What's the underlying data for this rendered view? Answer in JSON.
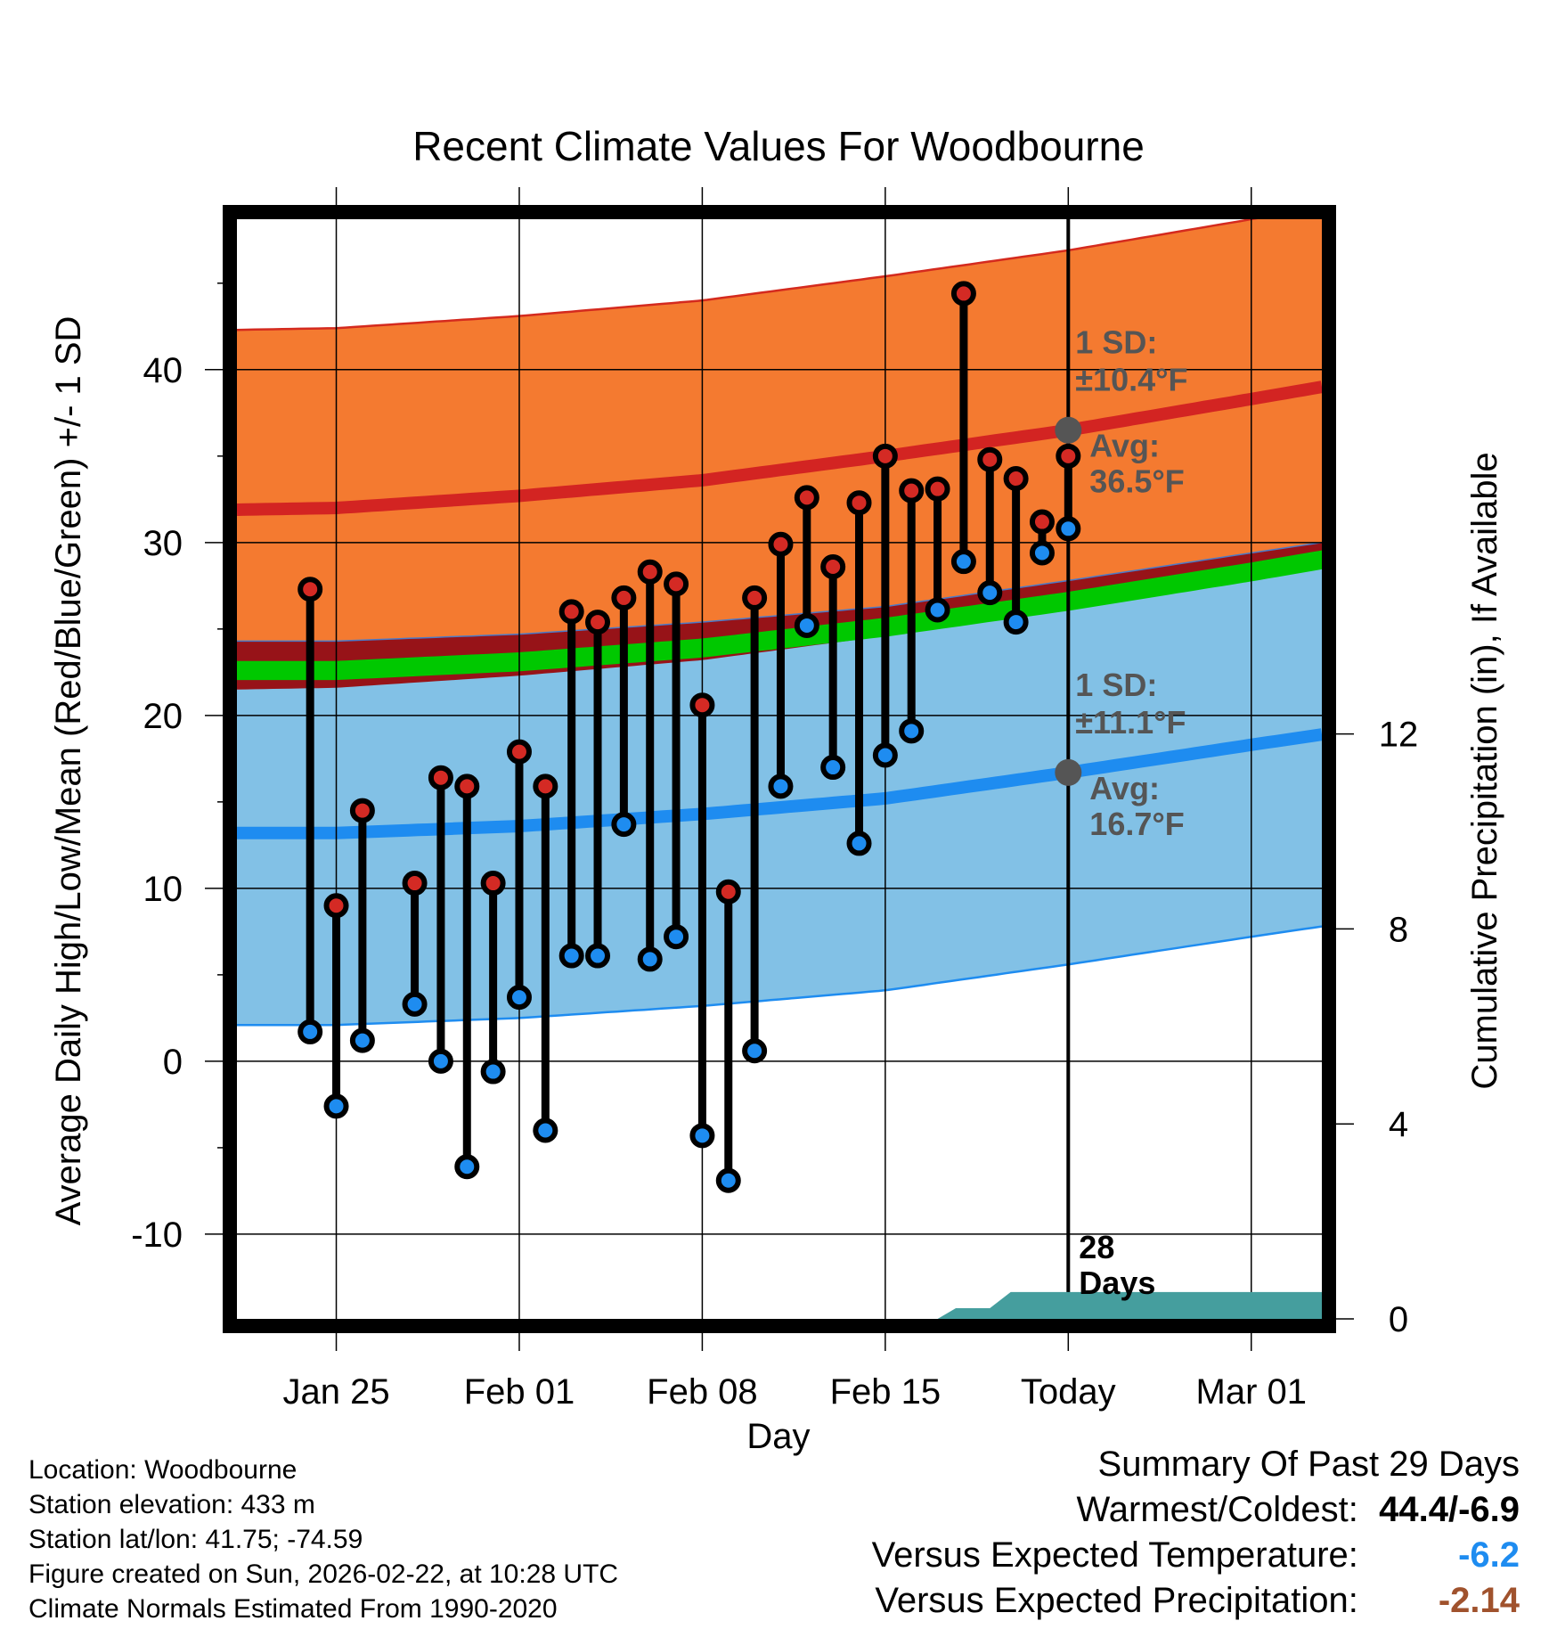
{
  "chart_data": {
    "type": "daily-temperature-range",
    "title": "Recent Climate Values For Woodbourne",
    "xlabel": "Day",
    "ylabel_left": "Average Daily High/Low/Mean (Red/Blue/Green) +/- 1 SD",
    "ylabel_right": "Cumulative Precipitation (in), If Available",
    "x_range_days": [
      -31.8,
      9.7
    ],
    "y_left_range": [
      -14.9,
      48.7
    ],
    "y_right_range": [
      0,
      22.56
    ],
    "y_left_ticks": [
      "-10",
      "0",
      "10",
      "20",
      "30",
      "40"
    ],
    "y_left_tick_values": [
      -10,
      0,
      10,
      20,
      30,
      40
    ],
    "y_right_ticks": [
      "0",
      "4",
      "8",
      "12"
    ],
    "y_right_tick_values": [
      0,
      4,
      8,
      12
    ],
    "x_ticks": [
      {
        "label": "Jan 25",
        "day": -28
      },
      {
        "label": "Feb 01",
        "day": -21
      },
      {
        "label": "Feb 08",
        "day": -14
      },
      {
        "label": "Feb 15",
        "day": -7
      },
      {
        "label": "Today",
        "day": 0
      },
      {
        "label": "Mar 01",
        "day": 7
      }
    ],
    "today_day": 0,
    "normals": {
      "high_avg": [
        [
          -31.8,
          31.9
        ],
        [
          -28,
          32.0
        ],
        [
          -21,
          32.7
        ],
        [
          -14,
          33.6
        ],
        [
          -7,
          35.0
        ],
        [
          0,
          36.5
        ],
        [
          7,
          38.3
        ],
        [
          9.7,
          39.0
        ]
      ],
      "high_sd": 10.4,
      "low_avg": [
        [
          -31.8,
          13.2
        ],
        [
          -28,
          13.2
        ],
        [
          -21,
          13.6
        ],
        [
          -14,
          14.3
        ],
        [
          -7,
          15.2
        ],
        [
          0,
          16.7
        ],
        [
          7,
          18.3
        ],
        [
          9.7,
          18.9
        ]
      ],
      "low_sd": 11.1,
      "mean_avg": [
        [
          -31.8,
          22.6
        ],
        [
          -28,
          22.6
        ],
        [
          -21,
          23.1
        ],
        [
          -14,
          23.9
        ],
        [
          -7,
          25.1
        ],
        [
          0,
          26.6
        ],
        [
          7,
          28.3
        ],
        [
          9.7,
          29.0
        ]
      ],
      "mean_band_halfwidth": 0.55
    },
    "observations": [
      {
        "day": -29,
        "high": 27.3,
        "low": 1.7
      },
      {
        "day": -28,
        "high": 9.0,
        "low": -2.6
      },
      {
        "day": -27,
        "high": 14.5,
        "low": 1.2
      },
      {
        "day": -25,
        "high": 10.3,
        "low": 3.3
      },
      {
        "day": -24,
        "high": 16.4,
        "low": 0.0
      },
      {
        "day": -23,
        "high": 15.9,
        "low": -6.1
      },
      {
        "day": -22,
        "high": 10.3,
        "low": -0.6
      },
      {
        "day": -21,
        "high": 17.9,
        "low": 3.7
      },
      {
        "day": -20,
        "high": 15.9,
        "low": -4.0
      },
      {
        "day": -19,
        "high": 26.0,
        "low": 6.1
      },
      {
        "day": -18,
        "high": 25.4,
        "low": 6.1
      },
      {
        "day": -17,
        "high": 26.8,
        "low": 13.7
      },
      {
        "day": -16,
        "high": 28.3,
        "low": 5.9
      },
      {
        "day": -15,
        "high": 27.6,
        "low": 7.2
      },
      {
        "day": -14,
        "high": 20.6,
        "low": -4.3
      },
      {
        "day": -13,
        "high": 9.8,
        "low": -6.9
      },
      {
        "day": -12,
        "high": 26.8,
        "low": 0.6
      },
      {
        "day": -11,
        "high": 29.9,
        "low": 15.9
      },
      {
        "day": -10,
        "high": 32.6,
        "low": 25.2
      },
      {
        "day": -9,
        "high": 28.6,
        "low": 17.0
      },
      {
        "day": -8,
        "high": 32.3,
        "low": 12.6
      },
      {
        "day": -7,
        "high": 35.0,
        "low": 17.7
      },
      {
        "day": -6,
        "high": 33.0,
        "low": 19.1
      },
      {
        "day": -5,
        "high": 33.1,
        "low": 26.1
      },
      {
        "day": -4,
        "high": 44.4,
        "low": 28.9
      },
      {
        "day": -3,
        "high": 34.8,
        "low": 27.1
      },
      {
        "day": -2,
        "high": 33.7,
        "low": 25.4
      },
      {
        "day": -1,
        "high": 31.2,
        "low": 29.4
      },
      {
        "day": 0,
        "high": 35.0,
        "low": 30.8
      }
    ],
    "precip_cumulative": [
      [
        -31.8,
        0
      ],
      [
        -5,
        0
      ],
      [
        -4.3,
        0.22
      ],
      [
        -3,
        0.22
      ],
      [
        -2.2,
        0.55
      ],
      [
        9.7,
        0.55
      ]
    ],
    "annotations": {
      "high_sd_label": "1 SD:",
      "high_sd_value": "±10.4°F",
      "high_avg_label": "Avg:",
      "high_avg_value": "36.5°F",
      "low_sd_label": "1 SD:",
      "low_sd_value": "±11.1°F",
      "low_avg_label": "Avg:",
      "low_avg_value": "16.7°F",
      "days_number": "28",
      "days_word": "Days"
    }
  },
  "colors": {
    "high_band": "#f47a30",
    "high_band_edge": "#d42a1e",
    "high_line": "#d32422",
    "low_band": "#82c1e6",
    "low_band_edge": "#1e8cf0",
    "low_line": "#1e8cf0",
    "overlap_band": "#971318",
    "mean_band": "#00c800",
    "precip_fill": "#459e9e",
    "high_dot": "#d42a24",
    "low_dot": "#1e8cf0",
    "avg_dot": "#555555",
    "warm_value": "#000000",
    "temp_anomaly": "#1e8cf0",
    "precip_anomaly": "#a0522d"
  },
  "info": {
    "location": "Location: Woodbourne",
    "elevation": "Station elevation: 433 m",
    "latlon": "Station lat/lon: 41.75; -74.59",
    "created": "Figure created on Sun, 2026-02-22, at 10:28 UTC",
    "normals": "Climate Normals Estimated From 1990-2020"
  },
  "summary": {
    "title": "Summary Of Past 29 Days",
    "warm_cold_label": "Warmest/Coldest:",
    "warm_cold_value": "44.4/-6.9",
    "temp_label": "Versus Expected Temperature:",
    "temp_value": "-6.2",
    "precip_label": "Versus Expected Precipitation:",
    "precip_value": "-2.14"
  }
}
